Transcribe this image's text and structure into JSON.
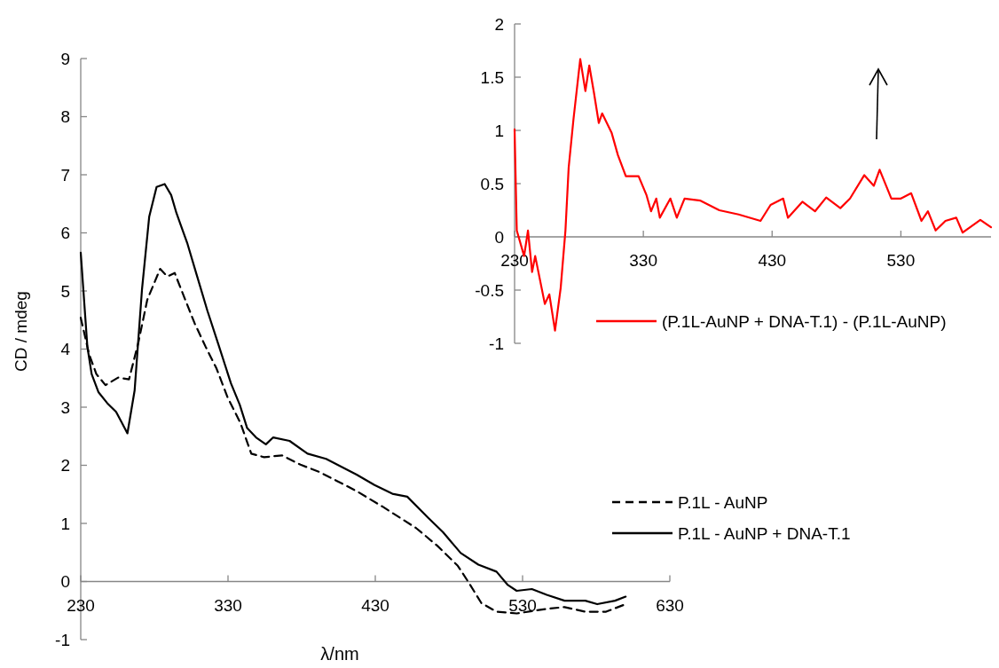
{
  "chart_data": [
    {
      "type": "line",
      "xlabel": "λ/nm",
      "ylabel": "CD / mdeg",
      "xlim": [
        230,
        630
      ],
      "xticks": [
        230,
        330,
        430,
        530,
        630
      ],
      "ylim": [
        -1,
        9
      ],
      "yticks": [
        -1,
        0,
        1,
        2,
        3,
        4,
        5,
        6,
        7,
        8,
        9
      ],
      "legend": "bottom right",
      "series": [
        {
          "name": "P.1L - AuNP",
          "color": "#000000",
          "line_style": "dashed",
          "x": [
            230,
            235.7,
            240.6,
            246.8,
            255.4,
            262.8,
            269,
            275.2,
            283.9,
            288.8,
            293.8,
            300,
            307.4,
            314.8,
            322.3,
            329.7,
            338.4,
            345.8,
            354.5,
            366.8,
            379.2,
            391.6,
            404,
            417,
            435.5,
            457.7,
            471.9,
            486,
            494,
            502,
            512.3,
            526,
            546.4,
            558.5,
            572.6,
            586.7,
            600
          ],
          "values": [
            4.54,
            3.91,
            3.57,
            3.38,
            3.51,
            3.48,
            4.1,
            4.85,
            5.38,
            5.25,
            5.31,
            4.91,
            4.44,
            4.04,
            3.66,
            3.17,
            2.73,
            2.2,
            2.14,
            2.17,
            2.01,
            1.89,
            1.73,
            1.56,
            1.28,
            0.92,
            0.62,
            0.27,
            -0.04,
            -0.37,
            -0.52,
            -0.55,
            -0.47,
            -0.44,
            -0.52,
            -0.52,
            -0.39
          ]
        },
        {
          "name": "P.1L - AuNP + DNA-T.1",
          "color": "#000000",
          "line_style": "solid",
          "x": [
            230,
            234.5,
            237.4,
            242,
            248,
            254,
            258,
            261.7,
            266.6,
            271.6,
            276.5,
            281.5,
            287,
            291.4,
            295,
            302.5,
            308.7,
            316,
            323.6,
            332,
            338,
            343,
            349,
            355.7,
            360.7,
            371.8,
            384,
            396.6,
            406.5,
            417.3,
            429.5,
            441.6,
            451.7,
            465.8,
            475.9,
            488,
            500,
            512.3,
            520,
            526,
            536.3,
            546.4,
            558.5,
            572.6,
            580.7,
            592.8,
            600
          ],
          "values": [
            5.66,
            4.04,
            3.57,
            3.26,
            3.07,
            2.92,
            2.73,
            2.55,
            3.29,
            5.03,
            6.28,
            6.79,
            6.84,
            6.65,
            6.34,
            5.81,
            5.28,
            4.66,
            4.07,
            3.41,
            3.04,
            2.64,
            2.48,
            2.36,
            2.48,
            2.42,
            2.2,
            2.11,
            1.98,
            1.84,
            1.66,
            1.51,
            1.46,
            1.1,
            0.85,
            0.49,
            0.29,
            0.17,
            -0.06,
            -0.16,
            -0.13,
            -0.23,
            -0.33,
            -0.33,
            -0.39,
            -0.33,
            -0.26
          ]
        }
      ]
    },
    {
      "type": "line",
      "xlim": [
        230,
        600
      ],
      "xticks": [
        230,
        330,
        430,
        530
      ],
      "ylim": [
        -1,
        2
      ],
      "yticks": [
        -1,
        -0.5,
        0,
        0.5,
        1,
        1.5,
        2
      ],
      "legend": "bottom right",
      "series": [
        {
          "name": "(P.1L-AuNP + DNA-T.1) - (P.1L-AuNP)",
          "color": "#ff0000",
          "line_style": "solid",
          "x": [
            230,
            231.7,
            237.4,
            240.4,
            243.6,
            246,
            253.5,
            257,
            261.4,
            265.8,
            269.5,
            272,
            275.7,
            281,
            285,
            288,
            291.7,
            295.4,
            298,
            305.3,
            310.2,
            316.4,
            326.3,
            332.5,
            336,
            340,
            342.8,
            351,
            356,
            362,
            374.4,
            389,
            404,
            421,
            428.8,
            438.6,
            442.3,
            453.5,
            463.3,
            472,
            483,
            490.5,
            501.6,
            509,
            513.5,
            522.6,
            530,
            538,
            546,
            551,
            557,
            564.6,
            573,
            578,
            591.7,
            600
          ],
          "values": [
            1.01,
            0.06,
            -0.18,
            0.06,
            -0.33,
            -0.18,
            -0.63,
            -0.54,
            -0.88,
            -0.48,
            0.06,
            0.65,
            1.1,
            1.67,
            1.37,
            1.61,
            1.35,
            1.07,
            1.16,
            0.98,
            0.77,
            0.57,
            0.57,
            0.39,
            0.24,
            0.36,
            0.18,
            0.36,
            0.18,
            0.36,
            0.34,
            0.25,
            0.21,
            0.15,
            0.3,
            0.36,
            0.18,
            0.33,
            0.24,
            0.37,
            0.27,
            0.36,
            0.58,
            0.48,
            0.63,
            0.36,
            0.36,
            0.41,
            0.15,
            0.24,
            0.06,
            0.15,
            0.18,
            0.04,
            0.16,
            0.09
          ]
        }
      ]
    }
  ]
}
